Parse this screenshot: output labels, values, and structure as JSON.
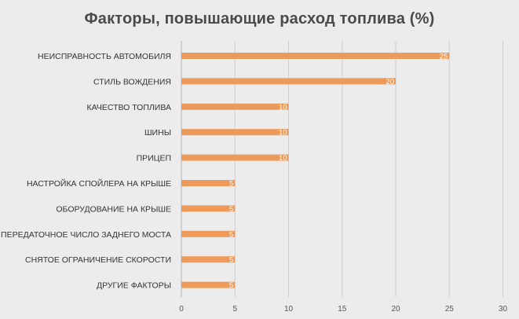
{
  "chart_data": {
    "type": "bar",
    "orientation": "horizontal",
    "title": "Факторы, повышающие расход топлива (%)",
    "xlabel": "",
    "ylabel": "",
    "xlim": [
      0,
      30
    ],
    "ticks": [
      "0",
      "5",
      "10",
      "15",
      "20",
      "25",
      "30"
    ],
    "grid": true,
    "bar_color": "#ed9a5a",
    "categories": [
      "НЕИСПРАВНОСТЬ АВТОМОБИЛЯ",
      "СТИЛЬ ВОЖДЕНИЯ",
      "КАЧЕСТВО ТОПЛИВА",
      "ШИНЫ",
      "ПРИЦЕП",
      "НАСТРОЙКА СПОЙЛЕРА НА КРЫШЕ",
      "ОБОРУДОВАНИЕ НА КРЫШЕ",
      "ПЕРЕДАТОЧНОЕ ЧИСЛО ЗАДНЕГО МОСТА",
      "СНЯТОЕ ОГРАНИЧЕНИЕ СКОРОСТИ",
      "ДРУГИЕ ФАКТОРЫ"
    ],
    "values": [
      25,
      20,
      10,
      10,
      10,
      5,
      5,
      5,
      5,
      5
    ]
  }
}
